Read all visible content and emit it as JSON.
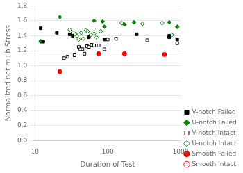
{
  "chart_data": {
    "type": "scatter",
    "xlabel": "Duration of Test",
    "ylabel": "Normalized net m+b Stress",
    "log": "x",
    "xlim": [
      10,
      1000
    ],
    "xticks": [
      10,
      100,
      1000
    ],
    "ylim": [
      0,
      1.8
    ],
    "yticks": [
      {
        "value": 0,
        "label": "0.0"
      },
      0.2,
      0.4,
      0.6,
      0.8,
      {
        "value": 1.0,
        "label": "1.0"
      },
      1.2,
      1.4,
      1.6,
      1.8
    ],
    "grid": "y",
    "legend": "lower right",
    "series": [
      {
        "name": "V-notch Failed",
        "color": "black",
        "marker": "square",
        "x": [
          12,
          13,
          20,
          30,
          33,
          55,
          90,
          250,
          700,
          900
        ],
        "values": [
          1.5,
          1.32,
          1.44,
          1.42,
          1.4,
          1.38,
          1.35,
          1.42,
          1.4,
          1.35
        ]
      },
      {
        "name": "U-notch Failed",
        "color": "green",
        "marker": "diamond",
        "x": [
          12,
          22,
          65,
          85,
          90,
          170,
          230,
          700,
          900
        ],
        "values": [
          1.32,
          1.65,
          1.6,
          1.59,
          1.52,
          1.55,
          1.58,
          1.58,
          1.52
        ]
      },
      {
        "name": "V-notch Intact",
        "color": "black",
        "marker": "square-open",
        "x": [
          25,
          28,
          35,
          40,
          42,
          45,
          48,
          52,
          55,
          60,
          65,
          75,
          90,
          100,
          130,
          350,
          700,
          900
        ],
        "values": [
          1.1,
          1.12,
          1.14,
          1.25,
          1.22,
          1.22,
          1.16,
          1.26,
          1.25,
          1.28,
          1.27,
          1.27,
          1.22,
          1.35,
          1.36,
          1.34,
          1.38,
          1.3
        ]
      },
      {
        "name": "U-notch Intact",
        "color": "green",
        "marker": "diamond-open",
        "x": [
          12,
          30,
          33,
          36,
          38,
          40,
          43,
          46,
          50,
          53,
          58,
          65,
          70,
          80,
          155,
          300,
          560,
          760,
          900
        ],
        "values": [
          1.33,
          1.48,
          1.44,
          1.42,
          1.4,
          1.35,
          1.44,
          1.36,
          1.47,
          1.46,
          1.41,
          1.43,
          1.38,
          1.46,
          1.57,
          1.56,
          1.57,
          1.41,
          1.52
        ]
      },
      {
        "name": "Smooth Failed",
        "color": "red",
        "marker": "circle",
        "x": [
          22,
          75,
          170,
          600
        ],
        "values": [
          0.92,
          1.16,
          1.16,
          1.15
        ]
      },
      {
        "name": "Smooth Intact",
        "color": "red",
        "marker": "circle-open",
        "x": [],
        "values": []
      }
    ]
  }
}
